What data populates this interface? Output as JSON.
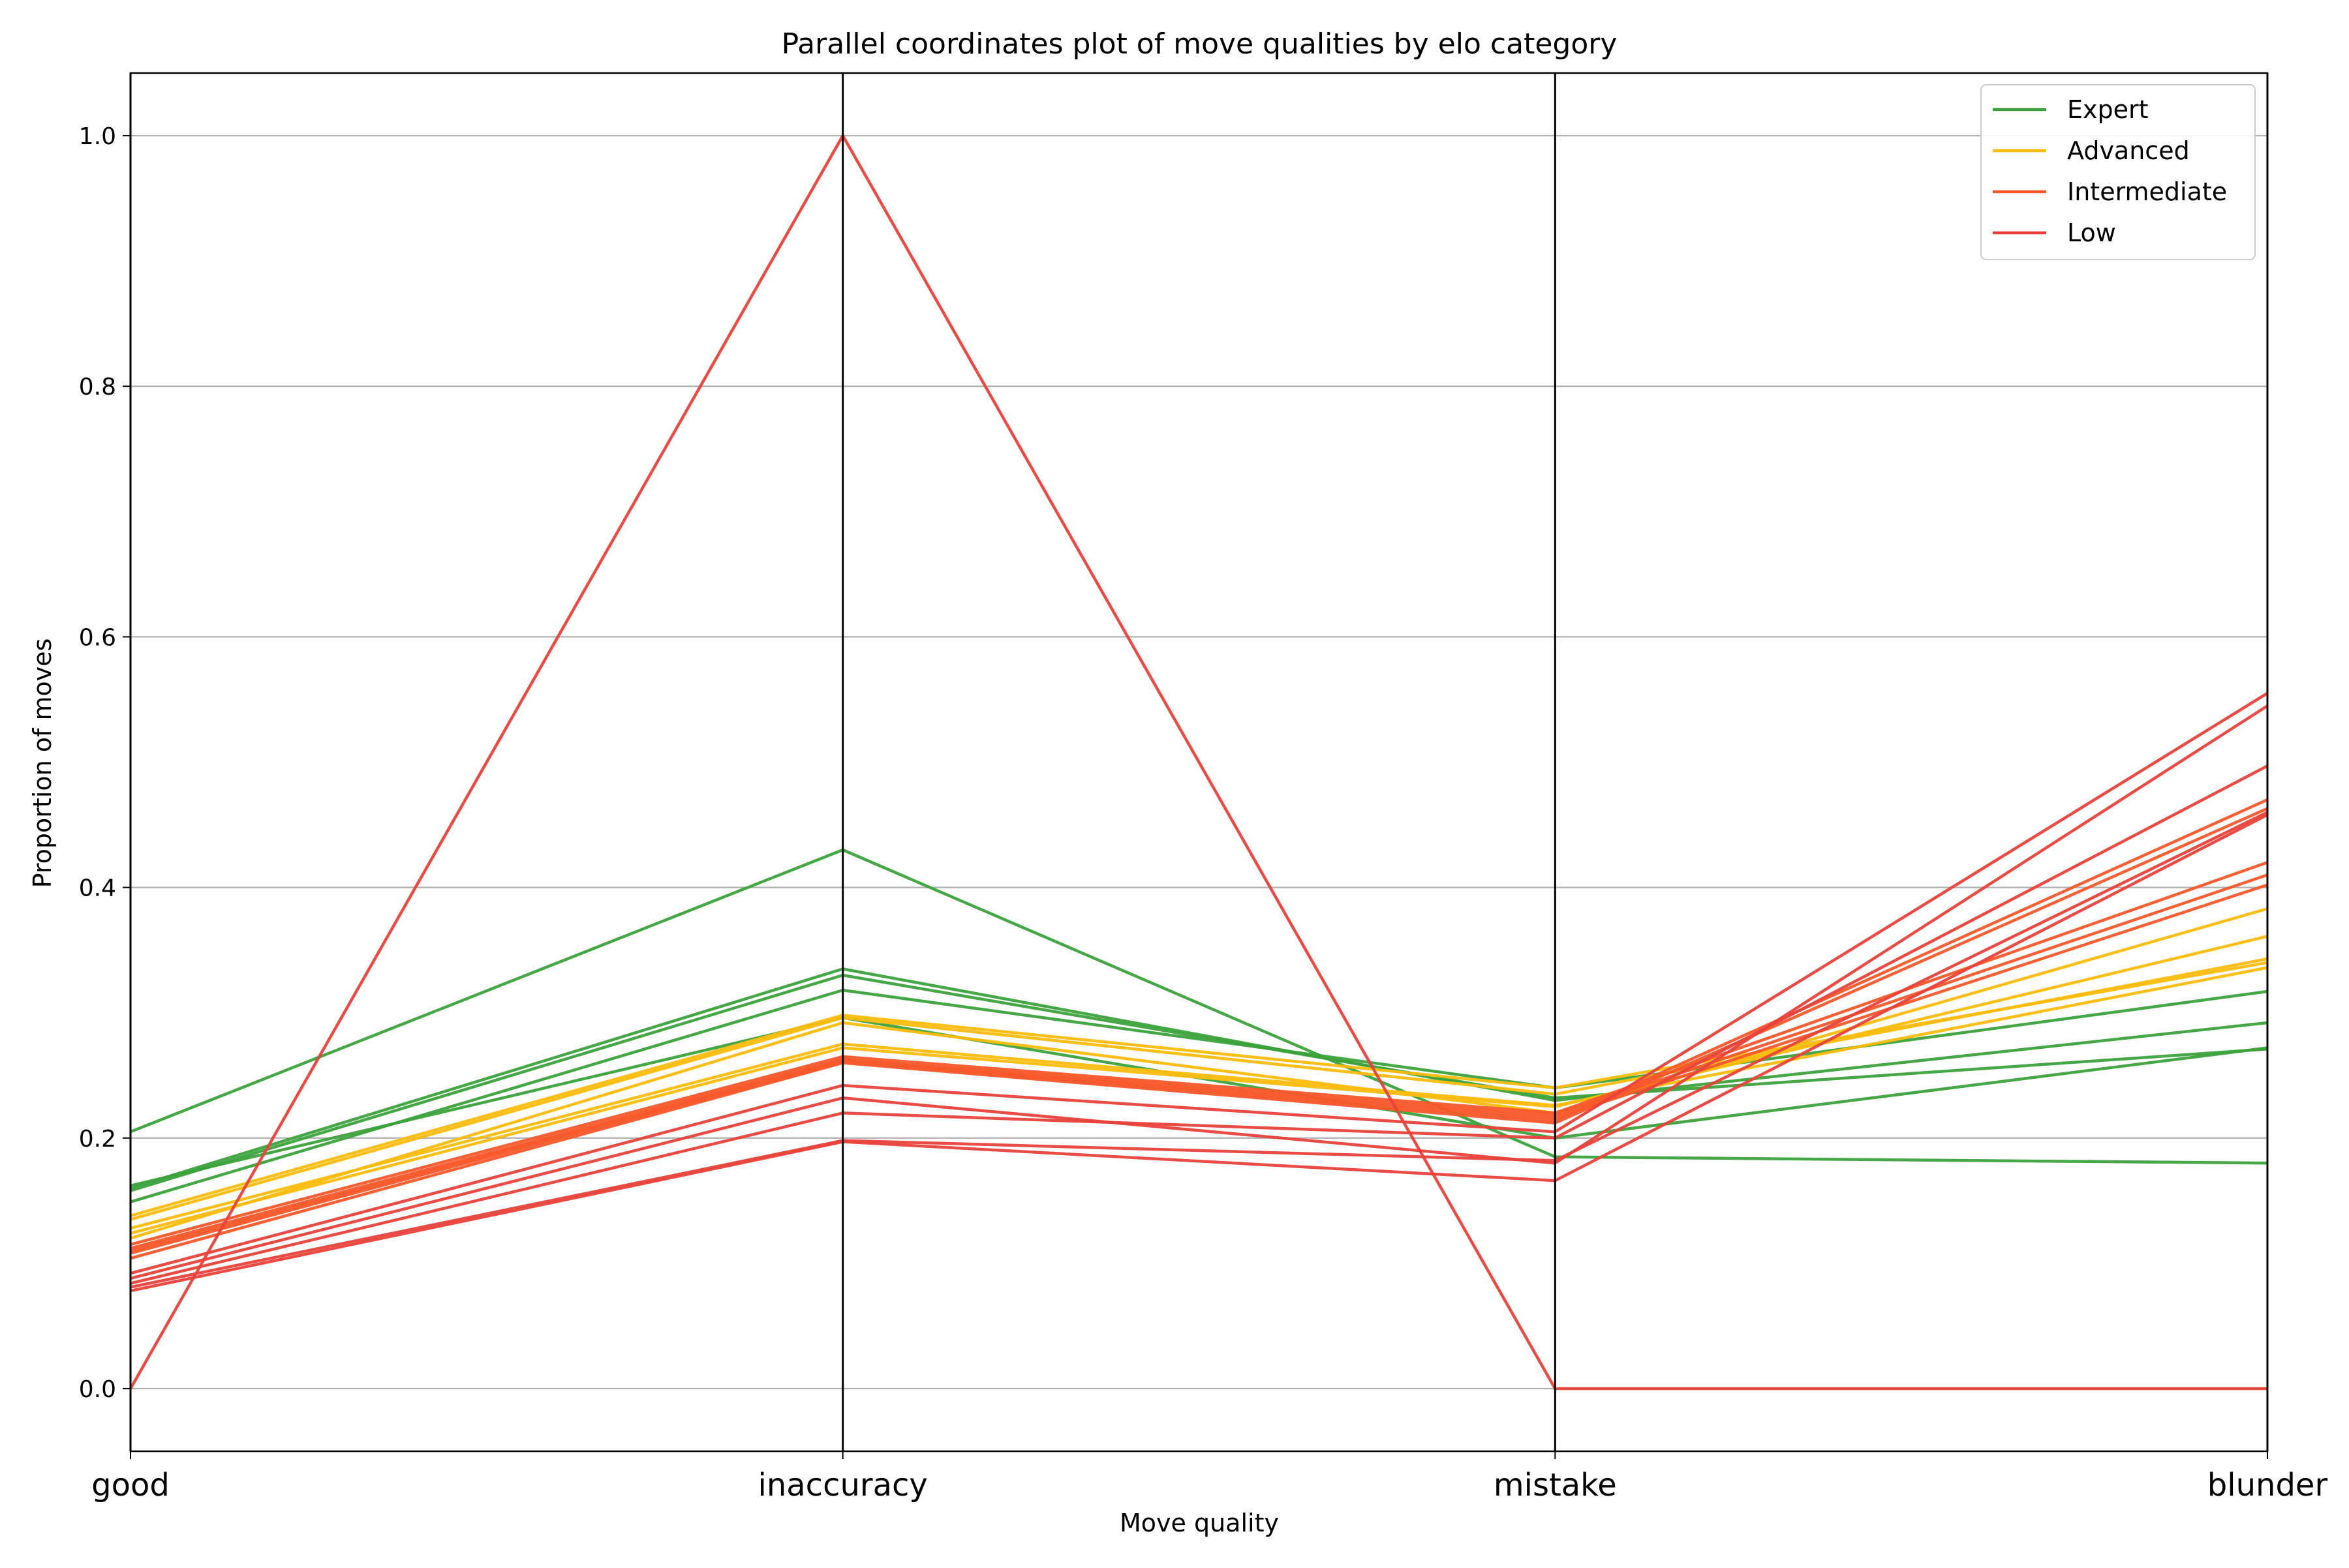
{
  "chart_data": {
    "type": "line",
    "title": "Parallel coordinates plot of move qualities by elo category",
    "xlabel": "Move quality",
    "ylabel": "Proportion of moves",
    "categories": [
      "good",
      "inaccuracy",
      "mistake",
      "blunder"
    ],
    "ylim": [
      -0.05,
      1.05
    ],
    "yticks": [
      "0.0",
      "0.2",
      "0.4",
      "0.6",
      "0.8",
      "1.0"
    ],
    "grid": "horizontal",
    "legend_position": "top-right",
    "groups": [
      {
        "name": "Expert",
        "color": "#3ca23c",
        "lines": [
          [
            0.205,
            0.43,
            0.185,
            0.18
          ],
          [
            0.16,
            0.335,
            0.23,
            0.292
          ],
          [
            0.158,
            0.33,
            0.232,
            0.271
          ],
          [
            0.149,
            0.318,
            0.24,
            0.317
          ],
          [
            0.162,
            0.296,
            0.2,
            0.272
          ]
        ]
      },
      {
        "name": "Advanced",
        "color": "#fbbc0d",
        "lines": [
          [
            0.138,
            0.298,
            0.24,
            0.34
          ],
          [
            0.135,
            0.296,
            0.235,
            0.343
          ],
          [
            0.128,
            0.275,
            0.226,
            0.336
          ],
          [
            0.124,
            0.272,
            0.225,
            0.361
          ],
          [
            0.12,
            0.292,
            0.22,
            0.383
          ]
        ]
      },
      {
        "name": "Intermediate",
        "color": "#f8572a",
        "lines": [
          [
            0.115,
            0.265,
            0.22,
            0.42
          ],
          [
            0.112,
            0.263,
            0.218,
            0.41
          ],
          [
            0.11,
            0.262,
            0.216,
            0.402
          ],
          [
            0.108,
            0.261,
            0.214,
            0.47
          ],
          [
            0.104,
            0.26,
            0.212,
            0.463
          ]
        ]
      },
      {
        "name": "Low",
        "color": "#e8423a",
        "lines": [
          [
            0.0,
            1.0,
            0.0,
            0.0
          ],
          [
            0.092,
            0.242,
            0.205,
            0.555
          ],
          [
            0.088,
            0.232,
            0.18,
            0.545
          ],
          [
            0.084,
            0.22,
            0.2,
            0.497
          ],
          [
            0.081,
            0.198,
            0.182,
            0.46
          ],
          [
            0.078,
            0.197,
            0.166,
            0.458
          ]
        ]
      }
    ]
  }
}
